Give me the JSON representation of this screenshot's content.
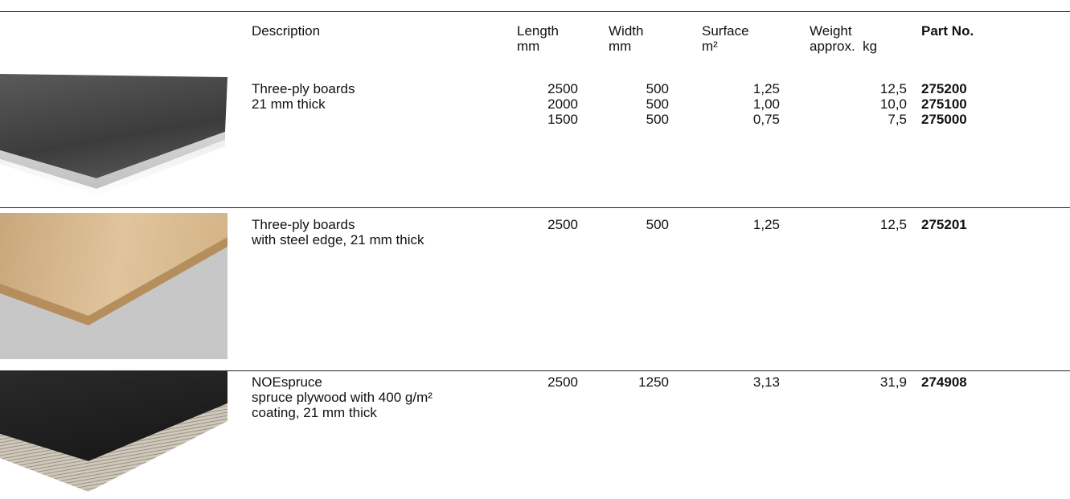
{
  "header": {
    "columns": [
      [
        "Description"
      ],
      [
        "Length",
        "mm"
      ],
      [
        "Width",
        "mm"
      ],
      [
        "Surface",
        "m²"
      ],
      [
        "Weight",
        "approx.  kg"
      ],
      [
        "Part No."
      ]
    ]
  },
  "rows": [
    {
      "description": [
        "Three-ply boards",
        "21 mm thick"
      ],
      "length": [
        "2500",
        "2000",
        "1500"
      ],
      "width": [
        "500",
        "500",
        "500"
      ],
      "surface": [
        "1,25",
        "1,00",
        "0,75"
      ],
      "weight": [
        "12,5",
        "10,0",
        "7,5"
      ],
      "part_no": [
        "275200",
        "275100",
        "275000"
      ]
    },
    {
      "description": [
        "Three-ply boards",
        "with steel edge, 21 mm thick"
      ],
      "length": [
        "2500"
      ],
      "width": [
        "500"
      ],
      "surface": [
        "1,25"
      ],
      "weight": [
        "12,5"
      ],
      "part_no": [
        "275201"
      ]
    },
    {
      "description": [
        "NOEspruce",
        "spruce plywood with 400 g/m²",
        "coating, 21 mm thick"
      ],
      "length": [
        "2500"
      ],
      "width": [
        "1250"
      ],
      "surface": [
        "3,13"
      ],
      "weight": [
        "31,9"
      ],
      "part_no": [
        "274908"
      ]
    }
  ]
}
